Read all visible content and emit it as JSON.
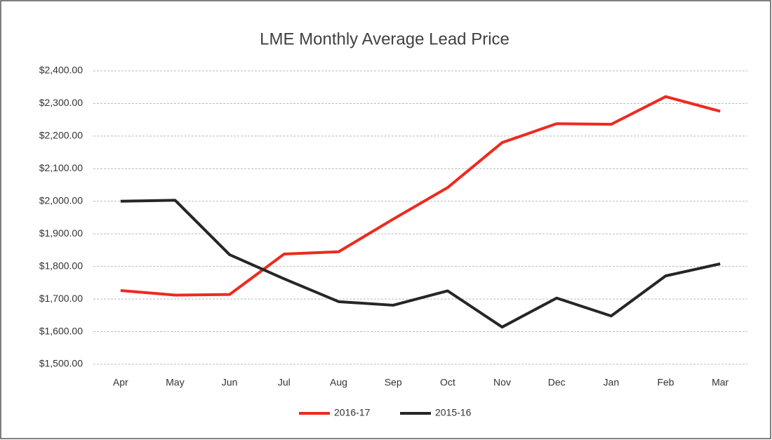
{
  "chart_data": {
    "type": "line",
    "title": "LME Monthly Average Lead Price",
    "categories": [
      "Apr",
      "May",
      "Jun",
      "Jul",
      "Aug",
      "Sep",
      "Oct",
      "Nov",
      "Dec",
      "Jan",
      "Feb",
      "Mar"
    ],
    "series": [
      {
        "name": "2016-17",
        "color": "#ee2a1f",
        "values": [
          1726,
          1712,
          1714,
          1838,
          1845,
          1945,
          2042,
          2180,
          2238,
          2236,
          2321,
          2276
        ]
      },
      {
        "name": "2015-16",
        "color": "#262626",
        "values": [
          2000,
          2003,
          1836,
          1762,
          1692,
          1681,
          1725,
          1614,
          1703,
          1648,
          1771,
          1808
        ]
      }
    ],
    "ylim": [
      1500,
      2400
    ],
    "yticks": [
      {
        "value": 1500,
        "label": "$1,500.00"
      },
      {
        "value": 1600,
        "label": "$1,600.00"
      },
      {
        "value": 1700,
        "label": "$1,700.00"
      },
      {
        "value": 1800,
        "label": "$1,800.00"
      },
      {
        "value": 1900,
        "label": "$1,900.00"
      },
      {
        "value": 2000,
        "label": "$2,000.00"
      },
      {
        "value": 2100,
        "label": "$2,100.00"
      },
      {
        "value": 2200,
        "label": "$2,200.00"
      },
      {
        "value": 2300,
        "label": "$2,300.00"
      },
      {
        "value": 2400,
        "label": "$2,400.00"
      }
    ],
    "grid": true,
    "legend": "bottom"
  }
}
